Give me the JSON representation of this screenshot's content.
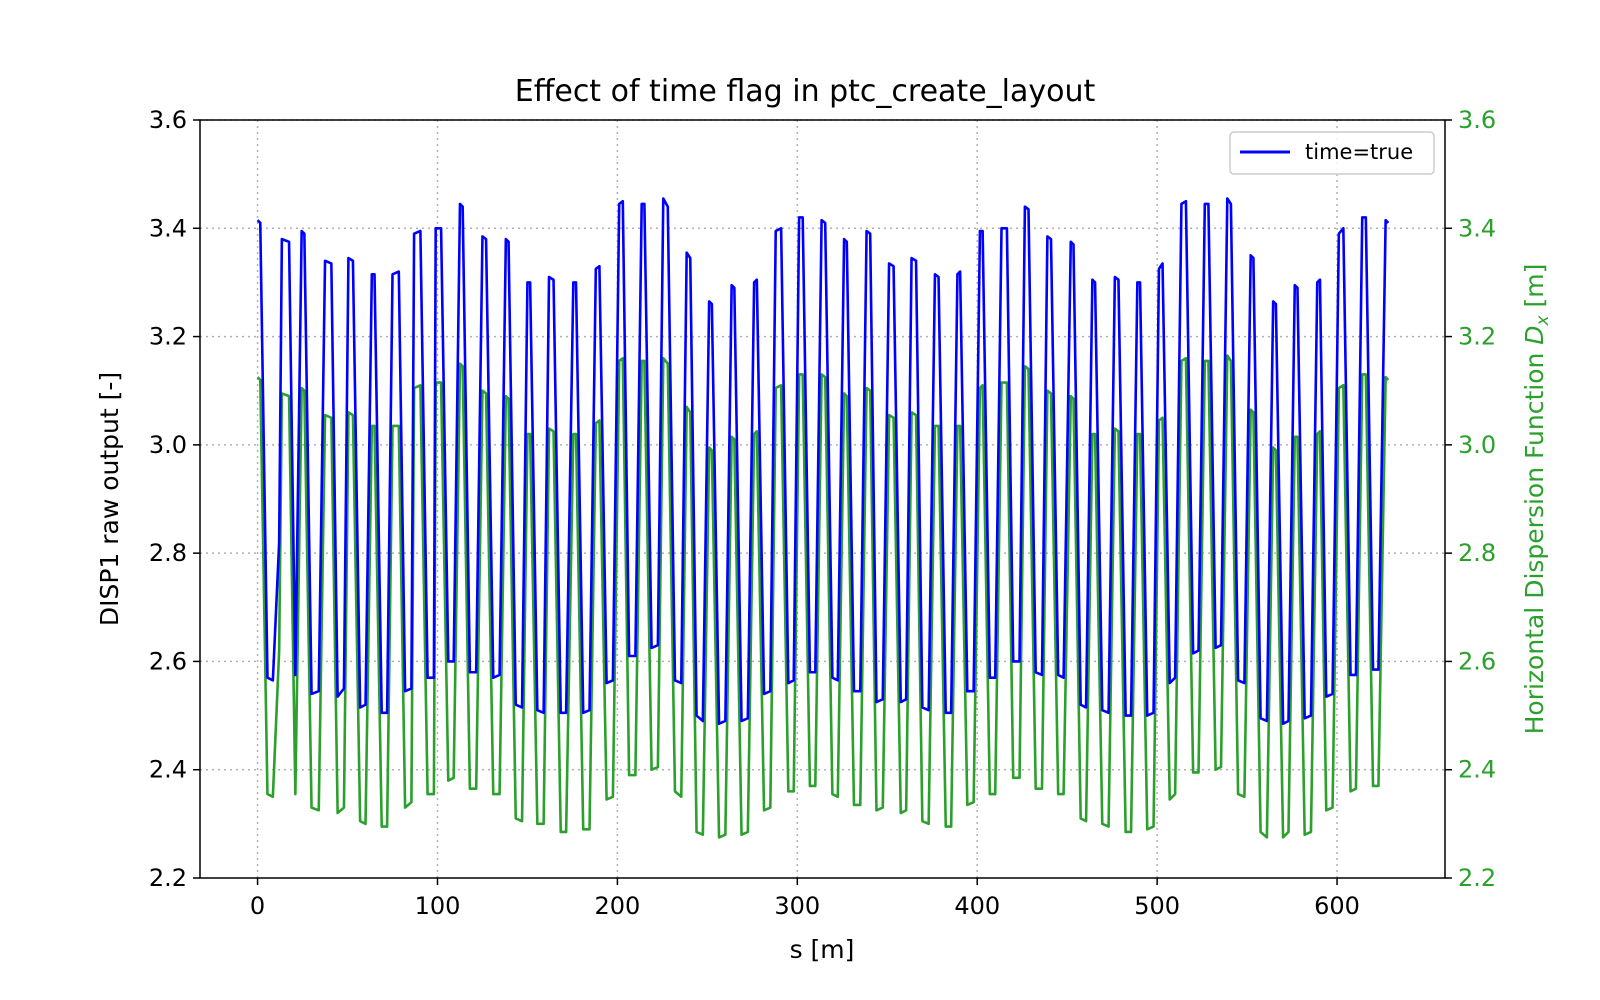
{
  "chart_data": {
    "type": "line",
    "title": "Effect of time flag in ptc_create_layout",
    "xlabel": "s [m]",
    "ylabel_left": "DISP1 raw output [-]",
    "ylabel_right_prefix": "Horizontal Dispersion Function ",
    "ylabel_right_symbol": "D",
    "ylabel_right_subscript": "x",
    "ylabel_right_suffix": " [m]",
    "xlim": [
      -32,
      660
    ],
    "ylim_left": [
      2.2,
      3.6
    ],
    "ylim_right": [
      2.2,
      3.6
    ],
    "xticks": [
      0,
      100,
      200,
      300,
      400,
      500,
      600
    ],
    "xtick_labels": [
      "0",
      "100",
      "200",
      "300",
      "400",
      "500",
      "600"
    ],
    "yticks_left": [
      2.2,
      2.4,
      2.6,
      2.8,
      3.0,
      3.2,
      3.4,
      3.6
    ],
    "ytick_labels_left": [
      "2.2",
      "2.4",
      "2.6",
      "2.8",
      "3.0",
      "3.2",
      "3.4",
      "3.6"
    ],
    "yticks_right": [
      2.2,
      2.4,
      2.6,
      2.8,
      3.0,
      3.2,
      3.4,
      3.6
    ],
    "ytick_labels_right": [
      "2.2",
      "2.4",
      "2.6",
      "2.8",
      "3.0",
      "3.2",
      "3.4",
      "3.6"
    ],
    "grid": true,
    "legend_position": "top-right",
    "series": [
      {
        "name": "time=true",
        "axis": "left",
        "color": "#0000ff",
        "x": [
          0,
          1.5,
          5.5,
          8.5,
          12,
          13.5,
          17.5,
          21,
          24.5,
          26,
          30,
          34,
          37.5,
          41,
          44.5,
          48,
          50.5,
          53,
          57,
          60,
          63.5,
          65,
          69,
          72,
          75,
          78.5,
          82,
          85.5,
          87,
          90.5,
          94.5,
          98,
          99,
          102,
          106,
          109,
          112.5,
          114,
          118,
          121.5,
          125,
          127,
          131,
          134.5,
          138,
          139.5,
          143.5,
          147,
          150,
          151.5,
          155.5,
          159,
          162,
          164.5,
          168.5,
          171.5,
          175.5,
          177,
          181,
          184.5,
          188,
          190,
          194,
          197.5,
          201,
          203,
          206.5,
          210,
          213.5,
          215,
          219,
          222.5,
          225.5,
          228,
          232,
          235.5,
          238.5,
          240.5,
          244,
          247.5,
          251,
          252.5,
          256.5,
          260,
          263.5,
          265,
          269,
          272.5,
          276,
          277.5,
          281.5,
          285,
          288,
          291,
          295,
          298,
          301,
          303,
          307,
          310,
          313.5,
          315.5,
          319.5,
          322.5,
          326,
          327.5,
          331.5,
          335,
          338.5,
          340.5,
          344,
          347.5,
          351,
          353.5,
          357.5,
          360.5,
          363.5,
          366,
          369.5,
          373,
          376.5,
          378.5,
          382.5,
          385.5,
          389,
          390.5,
          394.5,
          398,
          401.5,
          403,
          407,
          410,
          413.5,
          416.5,
          420,
          423.5,
          426.5,
          428.5,
          432.5,
          436,
          439,
          441,
          445,
          448,
          452,
          453.5,
          457.5,
          460.5,
          464,
          465.5,
          469.5,
          473,
          476.5,
          478.5,
          482.5,
          485.5,
          489,
          490.5,
          494.5,
          498,
          501,
          503,
          507,
          510,
          513.5,
          516,
          520,
          523,
          526.5,
          528.5,
          532.5,
          535.5,
          539,
          541,
          545,
          548.5,
          552,
          553.5,
          557.5,
          561,
          564.5,
          566,
          570,
          573,
          576.5,
          578,
          582,
          585.5,
          589,
          590.5,
          594,
          597.5,
          601,
          603.5,
          607.5,
          610.5,
          614,
          616,
          620,
          623,
          627,
          628.5
        ],
        "y": [
          3.415,
          3.41,
          2.57,
          2.565,
          2.82,
          3.38,
          3.375,
          2.575,
          3.395,
          3.39,
          2.54,
          2.545,
          3.34,
          3.335,
          2.535,
          2.55,
          3.345,
          3.34,
          2.515,
          2.52,
          3.315,
          3.315,
          2.505,
          2.505,
          3.315,
          3.32,
          2.545,
          2.55,
          3.39,
          3.395,
          2.57,
          2.57,
          3.4,
          3.4,
          2.6,
          2.6,
          3.445,
          3.44,
          2.58,
          2.58,
          3.385,
          3.38,
          2.57,
          2.575,
          3.38,
          3.375,
          2.52,
          2.515,
          3.3,
          3.3,
          2.51,
          2.505,
          3.31,
          3.305,
          2.505,
          2.505,
          3.3,
          3.3,
          2.505,
          2.51,
          3.325,
          3.33,
          2.56,
          2.565,
          3.445,
          3.45,
          2.61,
          2.61,
          3.445,
          3.445,
          2.625,
          2.63,
          3.455,
          3.44,
          2.565,
          2.56,
          3.355,
          3.345,
          2.5,
          2.49,
          3.265,
          3.26,
          2.485,
          2.49,
          3.295,
          3.29,
          2.49,
          2.495,
          3.3,
          3.305,
          2.54,
          2.545,
          3.395,
          3.4,
          2.56,
          2.565,
          3.42,
          3.42,
          2.58,
          2.58,
          3.415,
          3.41,
          2.57,
          2.565,
          3.38,
          3.375,
          2.545,
          2.545,
          3.395,
          3.39,
          2.525,
          2.53,
          3.335,
          3.33,
          2.525,
          2.53,
          3.345,
          3.34,
          2.515,
          2.51,
          3.315,
          3.31,
          2.505,
          2.505,
          3.315,
          3.32,
          2.545,
          2.545,
          3.395,
          3.395,
          2.57,
          2.57,
          3.4,
          3.4,
          2.6,
          2.6,
          3.44,
          3.435,
          2.58,
          2.575,
          3.385,
          3.38,
          2.575,
          2.57,
          3.375,
          3.37,
          2.52,
          2.515,
          3.305,
          3.3,
          2.51,
          2.505,
          3.31,
          3.305,
          2.5,
          2.5,
          3.3,
          3.3,
          2.5,
          2.505,
          3.325,
          3.335,
          2.56,
          2.57,
          3.445,
          3.45,
          2.615,
          2.62,
          3.445,
          3.445,
          2.625,
          2.63,
          3.455,
          3.445,
          2.565,
          2.56,
          3.35,
          3.345,
          2.495,
          2.49,
          3.265,
          3.26,
          2.485,
          2.49,
          3.295,
          3.29,
          2.495,
          2.5,
          3.3,
          3.305,
          2.535,
          2.54,
          3.39,
          3.4,
          2.575,
          2.575,
          3.42,
          3.42,
          2.585,
          2.585,
          3.415,
          3.41
        ]
      },
      {
        "name": "",
        "axis": "right",
        "color": "#2ca02c",
        "x": [
          0,
          1.5,
          5.5,
          8.5,
          12,
          13.5,
          17.5,
          21,
          24.5,
          26,
          30,
          34,
          37.5,
          41,
          44.5,
          48,
          50.5,
          53,
          57,
          60,
          63.5,
          65,
          69,
          72,
          75,
          78.5,
          82,
          85.5,
          87,
          90.5,
          94.5,
          98,
          99,
          102,
          106,
          109,
          112.5,
          114,
          118,
          121.5,
          125,
          127,
          131,
          134.5,
          138,
          139.5,
          143.5,
          147,
          150,
          151.5,
          155.5,
          159,
          162,
          164.5,
          168.5,
          171.5,
          175.5,
          177,
          181,
          184.5,
          188,
          190,
          194,
          197.5,
          201,
          203,
          206.5,
          210,
          213.5,
          215,
          219,
          222.5,
          225.5,
          228,
          232,
          235.5,
          238.5,
          240.5,
          244,
          247.5,
          251,
          252.5,
          256.5,
          260,
          263.5,
          265,
          269,
          272.5,
          276,
          277.5,
          281.5,
          285,
          288,
          291,
          295,
          298,
          301,
          303,
          307,
          310,
          313.5,
          315.5,
          319.5,
          322.5,
          326,
          327.5,
          331.5,
          335,
          338.5,
          340.5,
          344,
          347.5,
          351,
          353.5,
          357.5,
          360.5,
          363.5,
          366,
          369.5,
          373,
          376.5,
          378.5,
          382.5,
          385.5,
          389,
          390.5,
          394.5,
          398,
          401.5,
          403,
          407,
          410,
          413.5,
          416.5,
          420,
          423.5,
          426.5,
          428.5,
          432.5,
          436,
          439,
          441,
          445,
          448,
          452,
          453.5,
          457.5,
          460.5,
          464,
          465.5,
          469.5,
          473,
          476.5,
          478.5,
          482.5,
          485.5,
          489,
          490.5,
          494.5,
          498,
          501,
          503,
          507,
          510,
          513.5,
          516,
          520,
          523,
          526.5,
          528.5,
          532.5,
          535.5,
          539,
          541,
          545,
          548.5,
          552,
          553.5,
          557.5,
          561,
          564.5,
          566,
          570,
          573,
          576.5,
          578,
          582,
          585.5,
          589,
          590.5,
          594,
          597.5,
          601,
          603.5,
          607.5,
          610.5,
          614,
          616,
          620,
          623,
          627,
          628.5
        ],
        "y": [
          3.125,
          3.12,
          2.355,
          2.35,
          2.62,
          3.095,
          3.09,
          2.355,
          3.105,
          3.1,
          2.33,
          2.325,
          3.055,
          3.05,
          2.32,
          2.33,
          3.06,
          3.055,
          2.305,
          2.3,
          3.035,
          3.035,
          2.295,
          2.295,
          3.035,
          3.035,
          2.33,
          2.34,
          3.105,
          3.11,
          2.355,
          2.355,
          3.115,
          3.115,
          2.38,
          2.385,
          3.15,
          3.145,
          2.365,
          2.365,
          3.1,
          3.095,
          2.355,
          2.355,
          3.09,
          3.085,
          2.31,
          2.305,
          3.02,
          3.02,
          2.3,
          2.3,
          3.03,
          3.025,
          2.285,
          2.285,
          3.02,
          3.02,
          2.29,
          2.29,
          3.04,
          3.045,
          2.345,
          2.35,
          3.155,
          3.16,
          2.39,
          2.39,
          3.155,
          3.155,
          2.4,
          2.405,
          3.16,
          3.15,
          2.36,
          2.35,
          3.07,
          3.06,
          2.285,
          2.28,
          2.995,
          2.99,
          2.275,
          2.28,
          3.015,
          3.01,
          2.28,
          2.285,
          3.02,
          3.025,
          2.325,
          2.33,
          3.105,
          3.11,
          2.36,
          2.36,
          3.13,
          3.13,
          2.37,
          2.37,
          3.13,
          3.125,
          2.355,
          2.35,
          3.095,
          3.09,
          2.335,
          2.335,
          3.105,
          3.1,
          2.325,
          2.33,
          3.055,
          3.05,
          2.32,
          2.325,
          3.06,
          3.055,
          2.305,
          2.3,
          3.035,
          3.035,
          2.295,
          2.295,
          3.035,
          3.035,
          2.335,
          2.34,
          3.105,
          3.11,
          2.355,
          2.355,
          3.115,
          3.115,
          2.385,
          2.385,
          3.145,
          3.14,
          2.365,
          2.365,
          3.1,
          3.095,
          2.355,
          2.355,
          3.09,
          3.085,
          2.31,
          2.305,
          3.02,
          3.02,
          2.3,
          2.295,
          3.03,
          3.025,
          2.285,
          2.285,
          3.02,
          3.02,
          2.29,
          2.295,
          3.045,
          3.05,
          2.345,
          2.355,
          3.155,
          3.16,
          2.395,
          2.395,
          3.155,
          3.155,
          2.4,
          2.405,
          3.165,
          3.155,
          2.355,
          2.35,
          3.065,
          3.06,
          2.285,
          2.275,
          2.995,
          2.99,
          2.275,
          2.285,
          3.015,
          3.015,
          2.28,
          2.285,
          3.02,
          3.025,
          2.325,
          2.33,
          3.105,
          3.11,
          2.36,
          2.365,
          3.13,
          3.13,
          2.37,
          2.37,
          3.125,
          3.12
        ]
      }
    ]
  }
}
